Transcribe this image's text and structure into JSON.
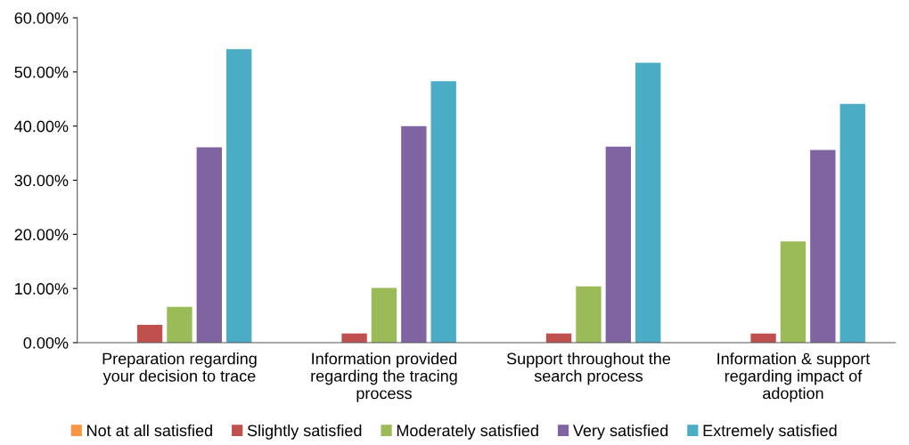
{
  "chart_data": {
    "type": "bar",
    "categories": [
      "Preparation regarding\nyour decision to trace",
      "Information provided\nregarding the tracing\nprocess",
      "Support throughout the\nsearch process",
      "Information & support\nregarding impact of\nadoption"
    ],
    "series": [
      {
        "name": "Not at all satisfied",
        "color": "#f79646",
        "values": [
          0,
          0,
          0,
          0
        ]
      },
      {
        "name": "Slightly satisfied",
        "color": "#c0504d",
        "values": [
          3.3,
          1.7,
          1.7,
          1.7
        ]
      },
      {
        "name": "Moderately satisfied",
        "color": "#9bbb59",
        "values": [
          6.6,
          10.1,
          10.4,
          18.7
        ]
      },
      {
        "name": "Very satisfied",
        "color": "#8064a2",
        "values": [
          36.1,
          40.0,
          36.2,
          35.6
        ]
      },
      {
        "name": "Extremely satisfied",
        "color": "#4bacc6",
        "values": [
          54.2,
          48.3,
          51.7,
          44.1
        ]
      }
    ],
    "ylim": [
      0,
      60
    ],
    "yticks": [
      {
        "value": 0,
        "label": "0.00%"
      },
      {
        "value": 10,
        "label": "10.00%"
      },
      {
        "value": 20,
        "label": "20.00%"
      },
      {
        "value": 30,
        "label": "30.00%"
      },
      {
        "value": 40,
        "label": "40.00%"
      },
      {
        "value": 50,
        "label": "50.00%"
      },
      {
        "value": 60,
        "label": "60.00%"
      }
    ],
    "grid": false,
    "legend": "bottom"
  }
}
